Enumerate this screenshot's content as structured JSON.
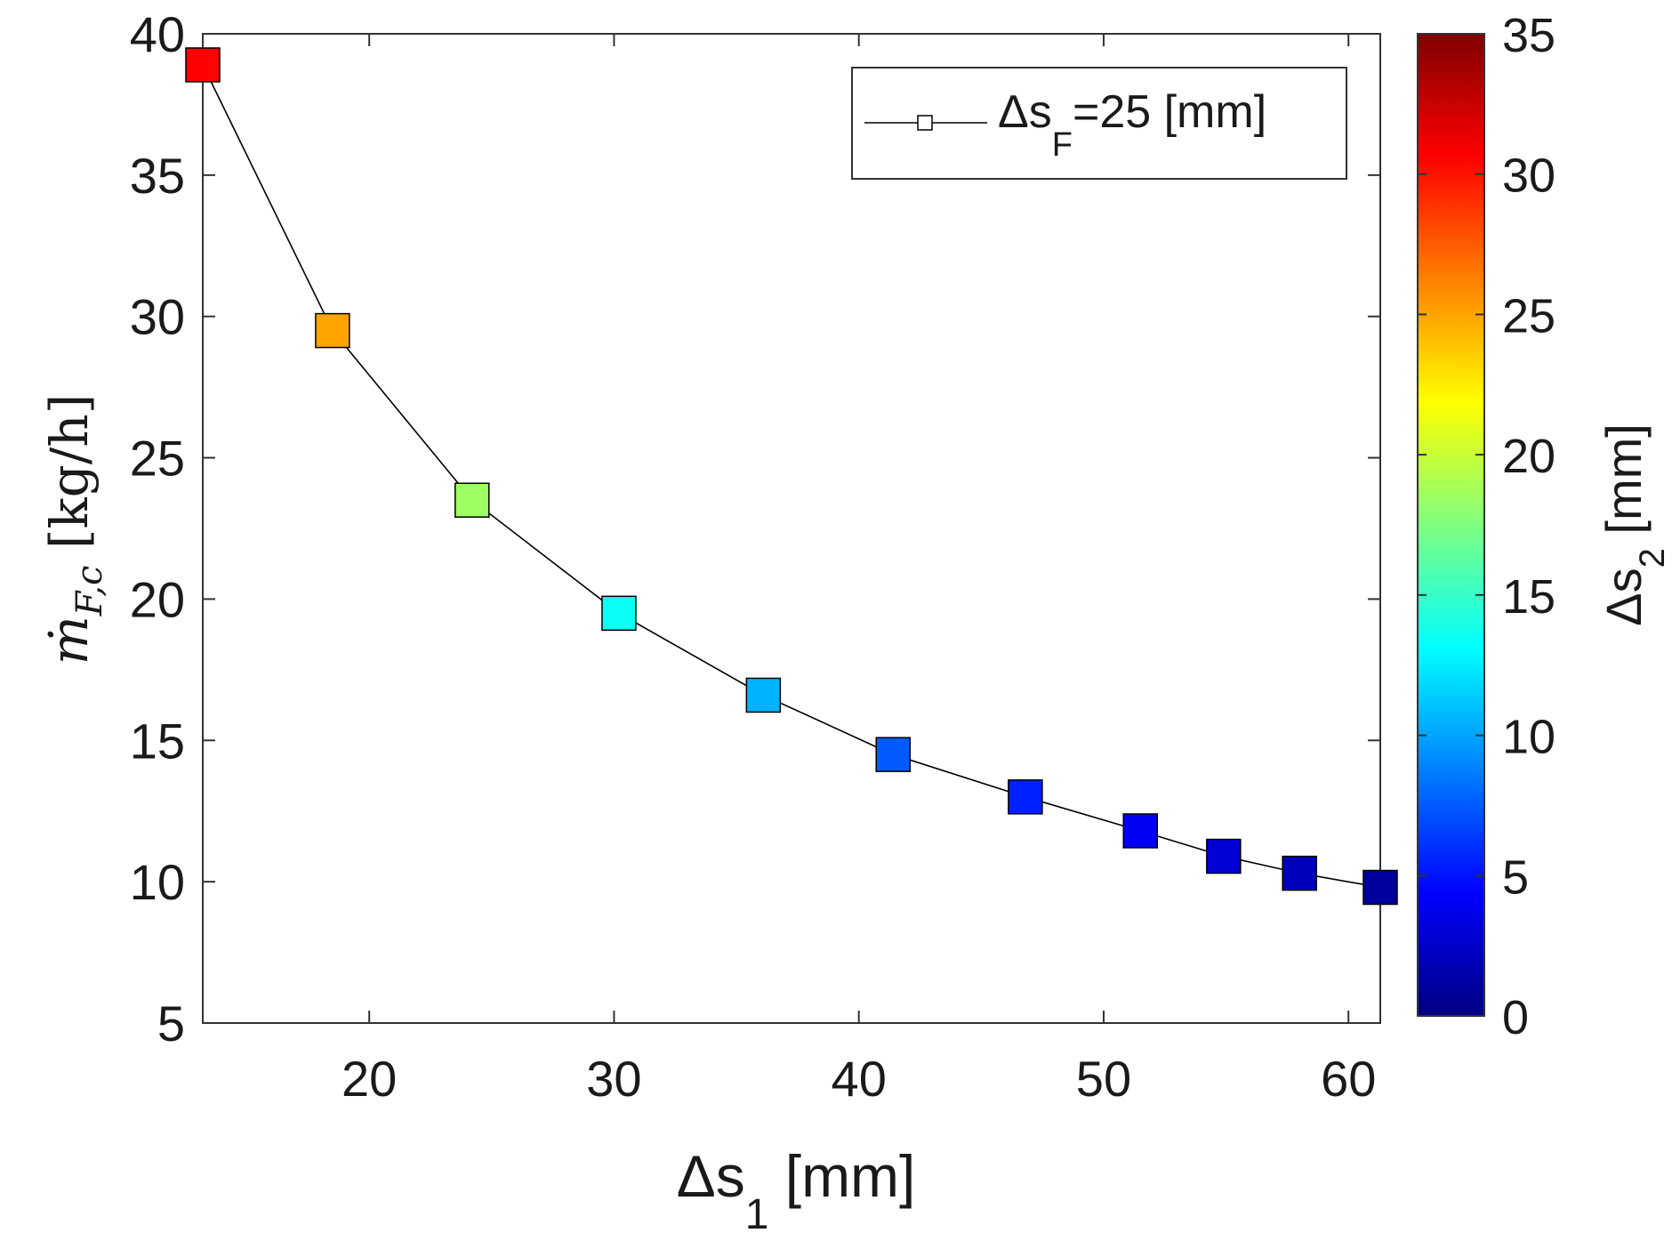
{
  "chart_data": {
    "type": "scatter",
    "title": "",
    "xlabel": {
      "main": "Δs",
      "sub": "1",
      "unit": " [mm]"
    },
    "ylabel": {
      "main": "ṁ",
      "sub": "F,c",
      "unit": " [kg/h]"
    },
    "xlim": [
      13.2,
      61.3
    ],
    "ylim": [
      5,
      40
    ],
    "xticks": [
      20,
      30,
      40,
      50,
      60
    ],
    "yticks": [
      5,
      10,
      15,
      20,
      25,
      30,
      35,
      40
    ],
    "grid": false,
    "legend": {
      "position": "top-right",
      "label": {
        "main": "Δs",
        "sub": "F",
        "rest": "=25 [mm]"
      }
    },
    "colorbar": {
      "label": {
        "main": "Δs",
        "sub": "2",
        "unit": " [mm]"
      },
      "range": [
        0,
        35
      ],
      "ticks": [
        0,
        5,
        10,
        15,
        20,
        25,
        30,
        35
      ],
      "colormap": "jet"
    },
    "series": [
      {
        "name": "Δs_F=25 [mm]",
        "line_color": "#000000",
        "marker": "square",
        "points": [
          {
            "x": 13.2,
            "y": 38.9,
            "c": 30.6
          },
          {
            "x": 18.5,
            "y": 29.5,
            "c": 25.0
          },
          {
            "x": 24.2,
            "y": 23.5,
            "c": 18.5
          },
          {
            "x": 30.2,
            "y": 19.5,
            "c": 13.5
          },
          {
            "x": 36.1,
            "y": 16.6,
            "c": 10.5
          },
          {
            "x": 41.4,
            "y": 14.5,
            "c": 7.5
          },
          {
            "x": 46.8,
            "y": 13.0,
            "c": 5.5
          },
          {
            "x": 51.5,
            "y": 11.8,
            "c": 4.0
          },
          {
            "x": 54.9,
            "y": 10.9,
            "c": 3.0
          },
          {
            "x": 58.0,
            "y": 10.3,
            "c": 2.0
          },
          {
            "x": 61.3,
            "y": 9.8,
            "c": 1.0
          }
        ]
      }
    ]
  }
}
